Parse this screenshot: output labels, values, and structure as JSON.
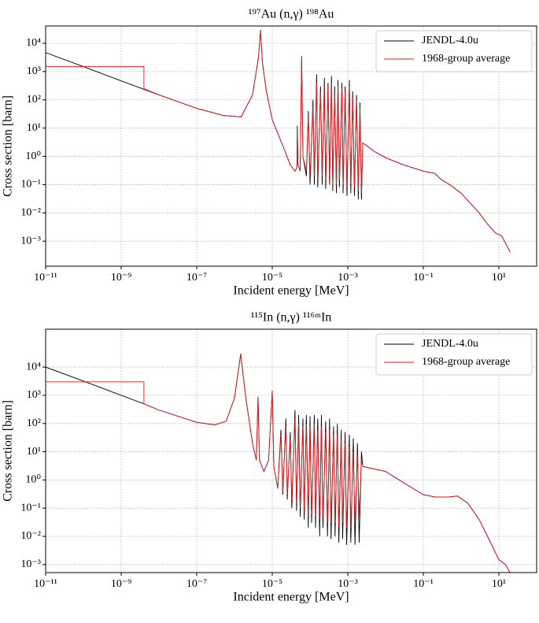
{
  "chart_data": [
    {
      "type": "line",
      "title": "¹⁹⁷Au (n,γ) ¹⁹⁸Au",
      "xlabel": "Incident energy [MeV]",
      "ylabel": "Cross section [barn]",
      "xscale": "log",
      "yscale": "log",
      "grid": true,
      "legend": "upper right",
      "xlim": [
        1e-11,
        100
      ],
      "ylim": [
        0.00013,
        41000
      ],
      "xticks": [
        {
          "value": 1e-11,
          "label": "10⁻¹¹"
        },
        {
          "value": 1e-09,
          "label": "10⁻⁹"
        },
        {
          "value": 1e-07,
          "label": "10⁻⁷"
        },
        {
          "value": 1e-05,
          "label": "10⁻⁵"
        },
        {
          "value": 0.001,
          "label": "10⁻³"
        },
        {
          "value": 0.1,
          "label": "10⁻¹"
        },
        {
          "value": 10,
          "label": "10¹"
        }
      ],
      "yticks": [
        {
          "value": 0.001,
          "label": "10⁻³"
        },
        {
          "value": 0.01,
          "label": "10⁻²"
        },
        {
          "value": 0.1,
          "label": "10⁻¹"
        },
        {
          "value": 1,
          "label": "10⁰"
        },
        {
          "value": 10,
          "label": "10¹"
        },
        {
          "value": 100,
          "label": "10²"
        },
        {
          "value": 1000,
          "label": "10³"
        },
        {
          "value": 10000,
          "label": "10⁴"
        }
      ],
      "series": [
        {
          "name": "JENDL-4.0u",
          "color": "#000000",
          "x": [
            1e-11,
            1e-10,
            1e-09,
            1e-08,
            1e-07,
            5e-07,
            1.5e-06,
            3e-06,
            4.3e-06,
            4.9e-06,
            5.5e-06,
            7e-06,
            1e-05,
            2e-05,
            3e-05,
            4e-05,
            4.5e-05,
            4.6e-05,
            4.8e-05,
            5.5e-05,
            6e-05,
            6.5e-05,
            8e-05,
            9e-05,
            0.0001,
            0.00012,
            0.00013,
            0.00015,
            0.00016,
            0.00019,
            0.00021,
            0.00024,
            0.00026,
            0.0003,
            0.00033,
            0.00037,
            0.0004,
            0.00045,
            0.0005,
            0.00055,
            0.0006,
            0.0007,
            0.00075,
            0.00085,
            0.00095,
            0.0011,
            0.0012,
            0.00135,
            0.0015,
            0.0017,
            0.0019,
            0.0021,
            0.0023,
            0.0025,
            0.005,
            0.01,
            0.03,
            0.1,
            0.2,
            0.3,
            0.5,
            1,
            3,
            5,
            8,
            12,
            20
          ],
          "values": [
            4700,
            1500,
            470,
            150,
            50,
            28,
            25,
            150,
            3000,
            30000,
            2000,
            200,
            20,
            2,
            0.5,
            0.3,
            0.4,
            12,
            0.5,
            0.3,
            3500,
            1,
            0.2,
            40,
            0.1,
            100,
            0.1,
            800,
            0.08,
            300,
            0.1,
            600,
            0.07,
            400,
            0.1,
            700,
            0.06,
            300,
            0.05,
            500,
            0.08,
            400,
            0.05,
            300,
            0.04,
            500,
            0.05,
            200,
            0.04,
            150,
            0.03,
            80,
            0.03,
            3,
            1.5,
            0.9,
            0.5,
            0.3,
            0.25,
            0.15,
            0.1,
            0.05,
            0.01,
            0.004,
            0.002,
            0.0015,
            0.0004
          ]
        },
        {
          "name": "1968-group average",
          "color": "#e31a1c",
          "x": [
            1e-11,
            4e-09,
            4e-09,
            1e-08,
            1e-07,
            5e-07,
            1.5e-06,
            3e-06,
            4.3e-06,
            4.9e-06,
            5.5e-06,
            7e-06,
            1e-05,
            2e-05,
            3e-05,
            4e-05,
            4.5e-05,
            4.6e-05,
            4.8e-05,
            5.5e-05,
            6e-05,
            6.5e-05,
            8e-05,
            9e-05,
            0.0001,
            0.00012,
            0.00013,
            0.00015,
            0.00016,
            0.00019,
            0.00021,
            0.00024,
            0.00026,
            0.0003,
            0.00033,
            0.00037,
            0.0004,
            0.00045,
            0.0005,
            0.00055,
            0.0006,
            0.0007,
            0.00075,
            0.00085,
            0.00095,
            0.0011,
            0.0012,
            0.00135,
            0.0015,
            0.0017,
            0.0019,
            0.0021,
            0.0023,
            0.0025,
            0.005,
            0.01,
            0.03,
            0.1,
            0.2,
            0.3,
            0.5,
            1,
            3,
            5,
            8,
            12,
            20
          ],
          "values": [
            1500,
            1500,
            250,
            150,
            50,
            28,
            25,
            150,
            3000,
            28000,
            2000,
            200,
            20,
            2,
            0.5,
            0.3,
            0.4,
            10,
            0.5,
            0.3,
            3400,
            1,
            0.3,
            30,
            0.2,
            60,
            0.2,
            400,
            0.15,
            200,
            0.2,
            300,
            0.15,
            250,
            0.2,
            400,
            0.1,
            200,
            0.1,
            300,
            0.15,
            250,
            0.1,
            200,
            0.08,
            300,
            0.1,
            120,
            0.08,
            100,
            0.06,
            50,
            0.05,
            3,
            1.5,
            0.9,
            0.5,
            0.3,
            0.25,
            0.15,
            0.1,
            0.05,
            0.01,
            0.004,
            0.002,
            0.0015,
            0.0004
          ]
        }
      ]
    },
    {
      "type": "line",
      "title": "¹¹⁵In (n,γ) ¹¹⁶ᵐIn",
      "xlabel": "Incident energy [MeV]",
      "ylabel": "Cross section [barn]",
      "xscale": "log",
      "yscale": "log",
      "grid": true,
      "legend": "upper right",
      "xlim": [
        1e-11,
        100
      ],
      "ylim": [
        0.00052,
        220000
      ],
      "xticks": [
        {
          "value": 1e-11,
          "label": "10⁻¹¹"
        },
        {
          "value": 1e-09,
          "label": "10⁻⁹"
        },
        {
          "value": 1e-07,
          "label": "10⁻⁷"
        },
        {
          "value": 1e-05,
          "label": "10⁻⁵"
        },
        {
          "value": 0.001,
          "label": "10⁻³"
        },
        {
          "value": 0.1,
          "label": "10⁻¹"
        },
        {
          "value": 10,
          "label": "10¹"
        }
      ],
      "yticks": [
        {
          "value": 0.001,
          "label": "10⁻³"
        },
        {
          "value": 0.01,
          "label": "10⁻²"
        },
        {
          "value": 0.1,
          "label": "10⁻¹"
        },
        {
          "value": 1,
          "label": "10⁰"
        },
        {
          "value": 10,
          "label": "10¹"
        },
        {
          "value": 100,
          "label": "10²"
        },
        {
          "value": 1000,
          "label": "10³"
        },
        {
          "value": 10000,
          "label": "10⁴"
        }
      ],
      "series": [
        {
          "name": "JENDL-4.0u",
          "color": "#000000",
          "x": [
            1e-11,
            1e-10,
            1e-09,
            4e-09,
            1e-08,
            1e-07,
            3e-07,
            6e-07,
            1e-06,
            1.46e-06,
            2e-06,
            3e-06,
            3.8e-06,
            4.2e-06,
            4.6e-06,
            6e-06,
            8e-06,
            1e-05,
            1.1e-05,
            1.4e-05,
            1.7e-05,
            1.9e-05,
            2.3e-05,
            2.5e-05,
            3e-05,
            3.3e-05,
            4e-05,
            4.4e-05,
            5e-05,
            5.5e-05,
            6.5e-05,
            7e-05,
            8e-05,
            9e-05,
            0.0001,
            0.00011,
            0.00013,
            0.00014,
            0.00016,
            0.00018,
            0.0002,
            0.00022,
            0.00026,
            0.00029,
            0.00033,
            0.00036,
            0.00042,
            0.00046,
            0.00053,
            0.00058,
            0.00067,
            0.00073,
            0.00085,
            0.00093,
            0.0011,
            0.0012,
            0.0014,
            0.00155,
            0.0018,
            0.002,
            0.0023,
            0.0025,
            0.01,
            0.03,
            0.1,
            0.2,
            0.5,
            0.8,
            1.5,
            3,
            5,
            10,
            15,
            20
          ],
          "values": [
            10000,
            3200,
            1000,
            500,
            300,
            110,
            90,
            120,
            800,
            30000,
            800,
            20,
            5,
            900,
            5,
            2,
            5,
            1500,
            3,
            0.5,
            60,
            0.3,
            150,
            0.2,
            50,
            0.1,
            300,
            0.08,
            200,
            0.05,
            150,
            0.04,
            200,
            0.02,
            180,
            0.03,
            200,
            0.02,
            150,
            0.01,
            200,
            0.02,
            120,
            0.01,
            150,
            0.008,
            80,
            0.01,
            100,
            0.006,
            60,
            0.008,
            50,
            0.005,
            40,
            0.006,
            30,
            0.005,
            20,
            0.006,
            10,
            3,
            2,
            0.8,
            0.3,
            0.25,
            0.25,
            0.27,
            0.15,
            0.04,
            0.01,
            0.0015,
            0.001,
            0.0005
          ]
        },
        {
          "name": "1968-group average",
          "color": "#e31a1c",
          "x": [
            1e-11,
            4e-09,
            4e-09,
            1e-08,
            1e-07,
            3e-07,
            6e-07,
            1e-06,
            1.46e-06,
            2e-06,
            3e-06,
            3.8e-06,
            4.2e-06,
            4.6e-06,
            6e-06,
            8e-06,
            1e-05,
            1.1e-05,
            1.4e-05,
            1.7e-05,
            1.9e-05,
            2.3e-05,
            2.5e-05,
            3e-05,
            3.3e-05,
            4e-05,
            4.4e-05,
            5e-05,
            5.5e-05,
            6.5e-05,
            7e-05,
            8e-05,
            9e-05,
            0.0001,
            0.00011,
            0.00013,
            0.00014,
            0.00016,
            0.00018,
            0.0002,
            0.00022,
            0.00026,
            0.00029,
            0.00033,
            0.00036,
            0.00042,
            0.00046,
            0.00053,
            0.00058,
            0.00067,
            0.00073,
            0.00085,
            0.00093,
            0.0011,
            0.0012,
            0.0014,
            0.00155,
            0.0018,
            0.002,
            0.0023,
            0.0025,
            0.01,
            0.03,
            0.1,
            0.2,
            0.5,
            0.8,
            1.5,
            3,
            5,
            10,
            15,
            20
          ],
          "values": [
            3000,
            3000,
            500,
            300,
            110,
            90,
            120,
            800,
            28000,
            800,
            20,
            5,
            900,
            5,
            2,
            5,
            1500,
            3,
            0.5,
            40,
            0.4,
            80,
            0.3,
            30,
            0.2,
            150,
            0.15,
            100,
            0.1,
            80,
            0.1,
            100,
            0.05,
            80,
            0.06,
            100,
            0.05,
            60,
            0.04,
            80,
            0.05,
            50,
            0.03,
            60,
            0.03,
            40,
            0.03,
            40,
            0.02,
            30,
            0.03,
            20,
            0.02,
            15,
            0.02,
            10,
            0.03,
            8,
            0.05,
            5,
            3,
            2,
            0.8,
            0.3,
            0.25,
            0.25,
            0.27,
            0.15,
            0.04,
            0.01,
            0.0015,
            0.001,
            0.0005
          ]
        }
      ]
    }
  ]
}
